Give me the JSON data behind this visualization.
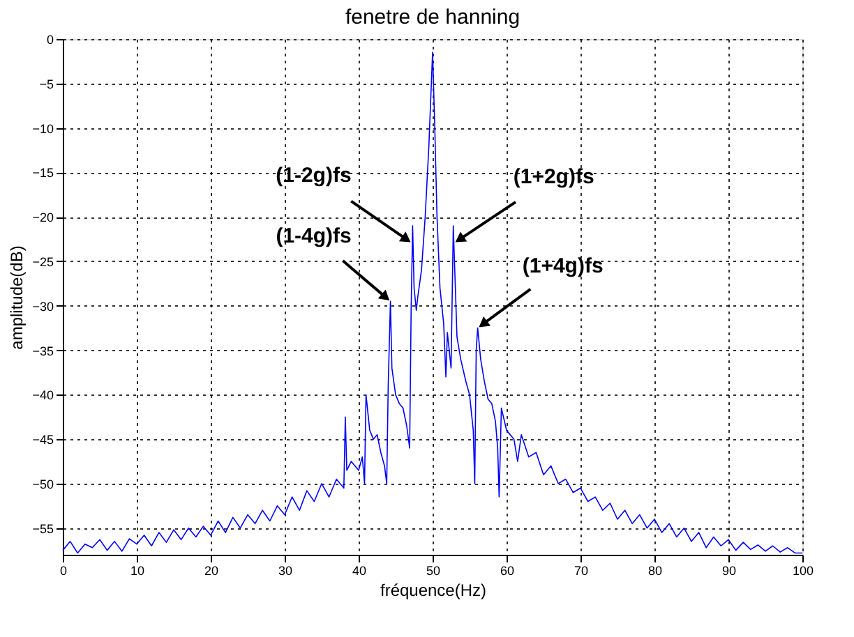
{
  "chart_data": {
    "type": "line",
    "title": "fenetre de hanning",
    "xlabel": "fréquence(Hz)",
    "ylabel": "amplitude(dB)",
    "xlim": [
      0,
      100
    ],
    "ylim": [
      -58,
      0
    ],
    "xticks": [
      0,
      10,
      20,
      30,
      40,
      50,
      60,
      70,
      80,
      90,
      100
    ],
    "yticks": [
      0,
      -5,
      -10,
      -15,
      -20,
      -25,
      -30,
      -35,
      -40,
      -45,
      -50,
      -55
    ],
    "grid": true,
    "line_style": "solid",
    "marker": "none",
    "series": [
      {
        "color": "#0000ff",
        "x": [
          0,
          1,
          2,
          3,
          4,
          5,
          6,
          7,
          8,
          9,
          10,
          11,
          12,
          13,
          14,
          15,
          16,
          17,
          18,
          19,
          20,
          21,
          22,
          23,
          24,
          25,
          26,
          27,
          28,
          29,
          30,
          31,
          32,
          33,
          34,
          35,
          36,
          37,
          38,
          38.2,
          38.4,
          39,
          40,
          40.5,
          40.8,
          41,
          41.5,
          42,
          42.5,
          43,
          43.5,
          43.8,
          44,
          44.3,
          44.5,
          45,
          45.5,
          46,
          46.5,
          46.9,
          47.1,
          47.3,
          47.5,
          47.8,
          48,
          48.5,
          49,
          49.5,
          50,
          50.3,
          50.6,
          51,
          51.5,
          51.8,
          52,
          52.5,
          52.8,
          53,
          53.3,
          53.8,
          54.5,
          55,
          55.5,
          55.7,
          55.9,
          56.1,
          56.5,
          57,
          57.5,
          58,
          58.5,
          58.8,
          59,
          59.3,
          60,
          61,
          61.5,
          62,
          63,
          64,
          65,
          66,
          67,
          68,
          69,
          70,
          71,
          72,
          73,
          74,
          75,
          76,
          77,
          78,
          79,
          80,
          81,
          82,
          83,
          84,
          85,
          86,
          87,
          88,
          89,
          90,
          91,
          92,
          93,
          94,
          95,
          96,
          97,
          98,
          99,
          100
        ],
        "values": [
          -57.5,
          -56.5,
          -57.8,
          -56.8,
          -57.2,
          -56.3,
          -57.5,
          -56.5,
          -57.6,
          -56.2,
          -56.8,
          -55.8,
          -57,
          -55.5,
          -56.6,
          -55.2,
          -56.3,
          -55,
          -56,
          -54.8,
          -55.8,
          -54.2,
          -55.5,
          -53.8,
          -55,
          -53.5,
          -54.5,
          -53,
          -54.2,
          -52.5,
          -53.5,
          -51.5,
          -53,
          -50.8,
          -52,
          -50,
          -51.5,
          -49.5,
          -50.5,
          -42.5,
          -48.5,
          -47.5,
          -48.5,
          -47,
          -50,
          -40,
          -44,
          -45,
          -44.5,
          -46.5,
          -48,
          -50,
          -39,
          -29.5,
          -37,
          -40,
          -41,
          -41.5,
          -43.5,
          -46,
          -30.5,
          -21,
          -28,
          -30.5,
          -29,
          -26,
          -20,
          -12,
          -1.5,
          -10,
          -20,
          -28,
          -32,
          -38,
          -33,
          -37,
          -21,
          -26,
          -33.5,
          -36,
          -38.5,
          -40,
          -44,
          -50,
          -35,
          -32.5,
          -36,
          -38.5,
          -40.5,
          -41,
          -43,
          -46,
          -51.5,
          -41.5,
          -44,
          -45,
          -47.5,
          -44.5,
          -47,
          -46.5,
          -49,
          -48,
          -50,
          -49.5,
          -51,
          -50.5,
          -52,
          -51.5,
          -53,
          -52.2,
          -54,
          -53,
          -54.5,
          -53.5,
          -55,
          -54,
          -55.5,
          -54.5,
          -56,
          -55,
          -56.5,
          -55.5,
          -57.2,
          -56,
          -57,
          -56.3,
          -57.5,
          -56.6,
          -57.4,
          -56.9,
          -57.6,
          -57,
          -57.7,
          -57.2,
          -57.8,
          -57.8
        ]
      }
    ],
    "annotations": [
      {
        "text": "(1-2g)fs",
        "x": 47.3,
        "y": -23
      },
      {
        "text": "(1+2g)fs",
        "x": 52.8,
        "y": -23
      },
      {
        "text": "(1-4g)fs",
        "x": 44.3,
        "y": -29.5
      },
      {
        "text": "(1+4g)fs",
        "x": 56.1,
        "y": -32.5
      }
    ]
  }
}
